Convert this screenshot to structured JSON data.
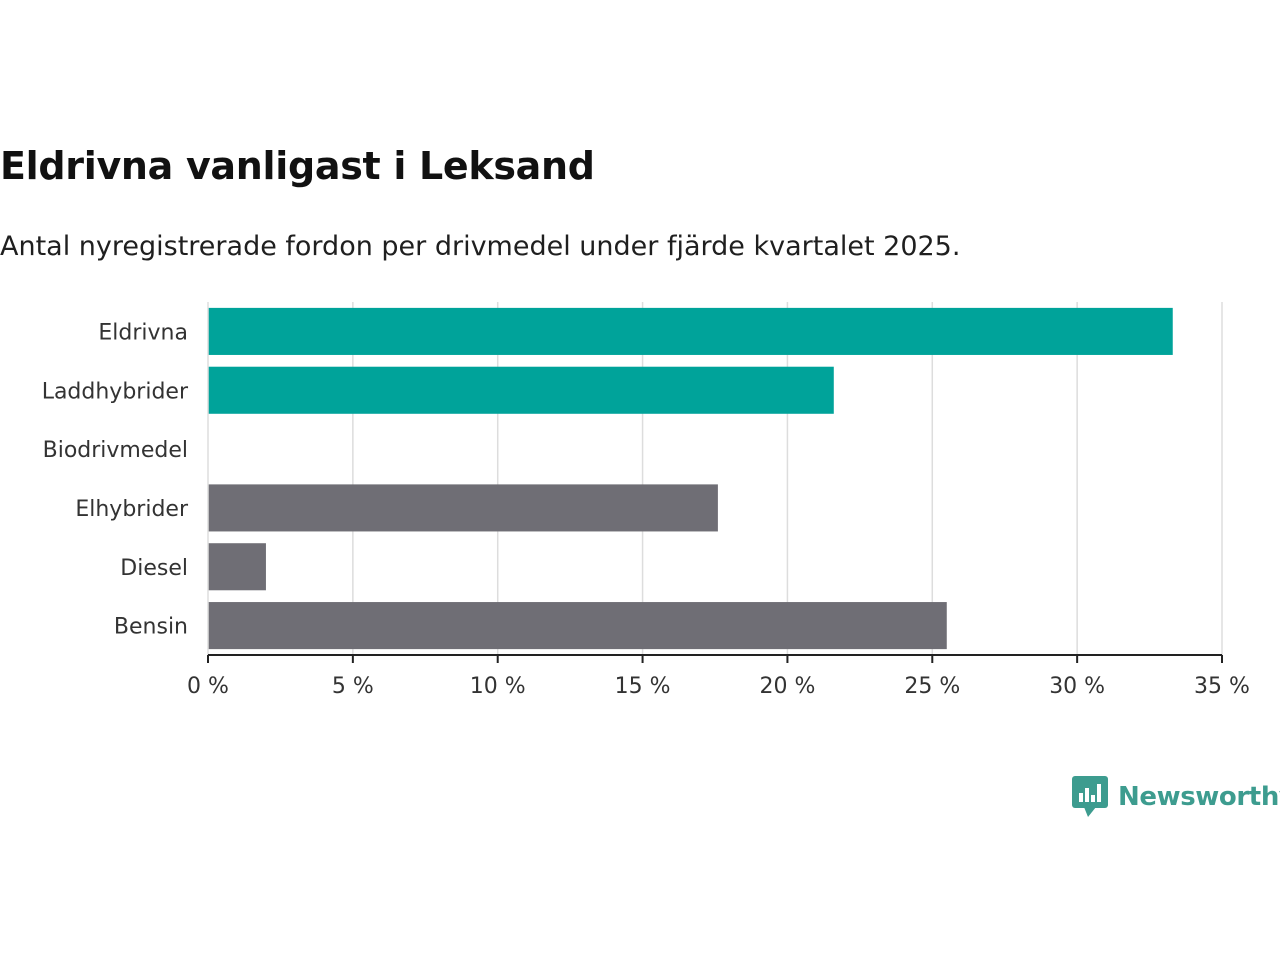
{
  "header": {
    "title": "Eldrivna vanligast i Leksand",
    "subtitle": "Antal nyregistrerade fordon per drivmedel under fjärde kvartalet 2025."
  },
  "brand": {
    "name": "Newsworthy",
    "color": "#3d9c8f"
  },
  "chart_data": {
    "type": "bar",
    "orientation": "horizontal",
    "title": "Eldrivna vanligast i Leksand",
    "subtitle": "Antal nyregistrerade fordon per drivmedel under fjärde kvartalet 2025.",
    "xlabel": "",
    "ylabel": "",
    "unit": "%",
    "categories": [
      "Eldrivna",
      "Laddhybrider",
      "Biodrivmedel",
      "Elhybrider",
      "Diesel",
      "Bensin"
    ],
    "values": [
      33.3,
      21.6,
      0,
      17.6,
      2.0,
      25.5
    ],
    "bar_colors": [
      "#00a39a",
      "#00a39a",
      "#00a39a",
      "#6f6e75",
      "#6f6e75",
      "#6f6e75"
    ],
    "xlim": [
      0,
      35
    ],
    "xticks": [
      0,
      5,
      10,
      15,
      20,
      25,
      30,
      35
    ],
    "xtick_labels": [
      "0 %",
      "5 %",
      "10 %",
      "15 %",
      "20 %",
      "25 %",
      "30 %",
      "35 %"
    ],
    "grid": true,
    "gridline_color": "#dddddd",
    "axis_color": "#222222"
  }
}
